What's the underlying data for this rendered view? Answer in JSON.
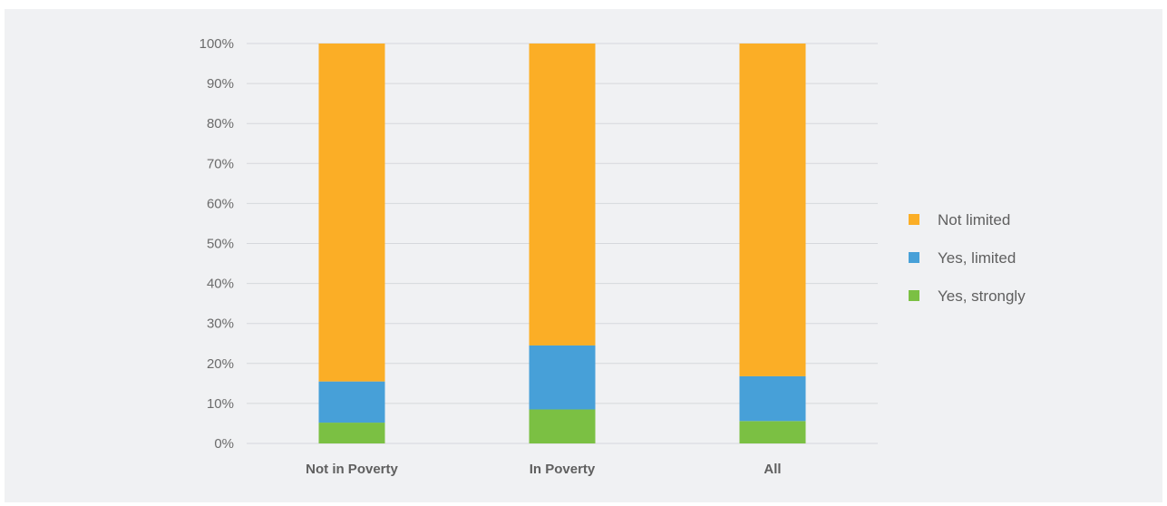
{
  "chart_data": {
    "type": "bar",
    "stacked": true,
    "percent": true,
    "categories": [
      "Not in Poverty",
      "In Poverty",
      "All"
    ],
    "series": [
      {
        "name": "Yes, strongly",
        "values": [
          5.2,
          8.5,
          5.6
        ],
        "color": "#7bc043"
      },
      {
        "name": "Yes, limited",
        "values": [
          10.3,
          16.0,
          11.2
        ],
        "color": "#47a0d8"
      },
      {
        "name": "Not limited",
        "values": [
          84.5,
          75.5,
          83.2
        ],
        "color": "#fbae26"
      }
    ],
    "yticks": [
      "0%",
      "10%",
      "20%",
      "30%",
      "40%",
      "50%",
      "60%",
      "70%",
      "80%",
      "90%",
      "100%"
    ],
    "ylim": [
      0,
      100
    ],
    "legend_order": [
      "Not limited",
      "Yes, limited",
      "Yes, strongly"
    ],
    "legend_position": "right",
    "grid": true,
    "title": "",
    "xlabel": "",
    "ylabel": ""
  }
}
